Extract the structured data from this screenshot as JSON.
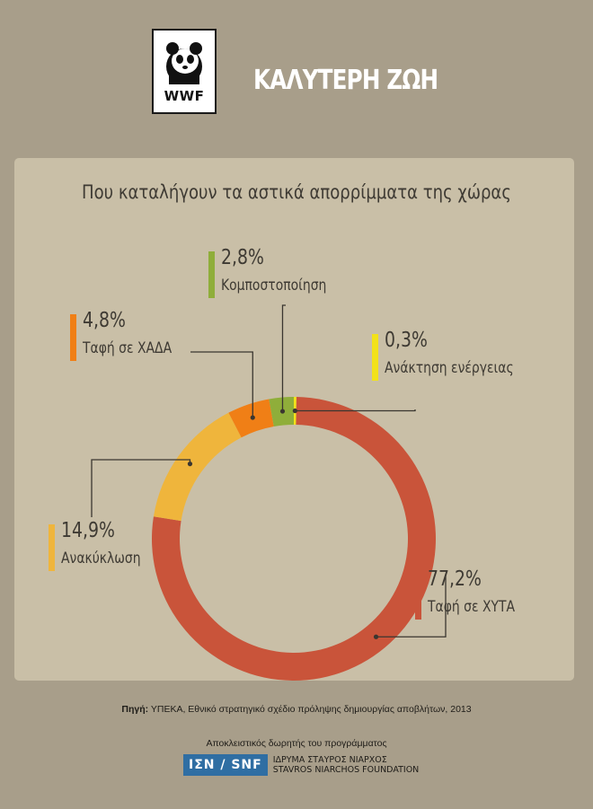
{
  "header": {
    "logo_text": "WWF",
    "title": "ΚΑΛΥΤΕΡΗ ΖΩΗ"
  },
  "chart_data": {
    "type": "pie",
    "title": "Που καταλήγουν τα αστικά απορρίμματα της χώρας",
    "slices": [
      {
        "label": "Ταφή σε ΧΥΤΑ",
        "value": 77.2,
        "value_label": "77,2%",
        "color": "#c9543a"
      },
      {
        "label": "Ανακύκλωση",
        "value": 14.9,
        "value_label": "14,9%",
        "color": "#efb53c"
      },
      {
        "label": "Ταφή σε ΧΑΔΑ",
        "value": 4.8,
        "value_label": "4,8%",
        "color": "#f07f16"
      },
      {
        "label": "Κομποστοποίηση",
        "value": 2.8,
        "value_label": "2,8%",
        "color": "#8fae3a"
      },
      {
        "label": "Ανάκτηση ενέργειας",
        "value": 0.3,
        "value_label": "0,3%",
        "color": "#f2e21a"
      }
    ]
  },
  "footer": {
    "source_label": "Πηγή:",
    "source_text": " ΥΠΕΚΑ, Εθνικό στρατηγικό σχέδιο πρόληψης δημιουργίας αποβλήτων, 2013",
    "sponsor_text": "Αποκλειστικός δωρητής του προγράμματος",
    "sponsor_logo": "ΙΣΝ / SNF",
    "sponsor_name_gr": "ΙΔΡΥΜΑ ΣΤΑΥΡΟΣ ΝΙΑΡΧΟΣ",
    "sponsor_name_en": "STAVROS NIARCHOS FOUNDATION"
  }
}
